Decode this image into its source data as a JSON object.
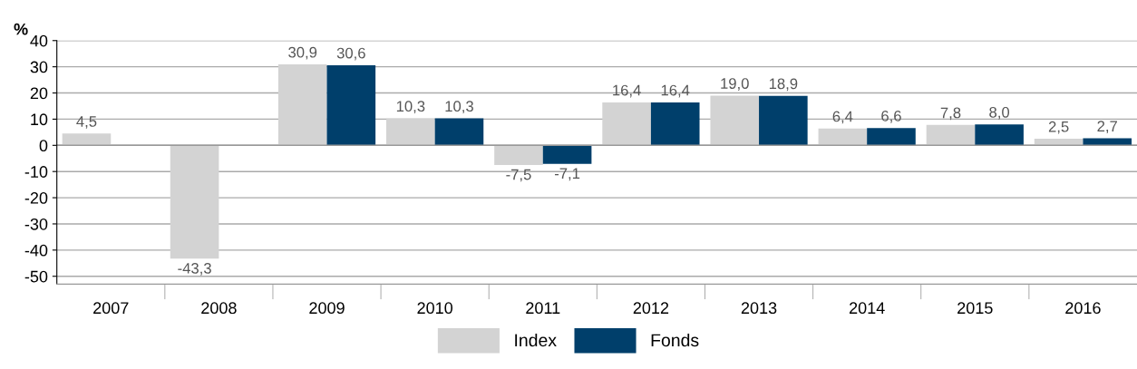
{
  "chart_data": {
    "type": "bar",
    "ylabel": "%",
    "categories": [
      "2007",
      "2008",
      "2009",
      "2010",
      "2011",
      "2012",
      "2013",
      "2014",
      "2015",
      "2016"
    ],
    "series": [
      {
        "name": "Index",
        "color": "#d3d3d3",
        "values": [
          4.5,
          -43.3,
          30.9,
          10.3,
          -7.5,
          16.4,
          19.0,
          6.4,
          7.8,
          2.5
        ],
        "value_labels": [
          "4,5",
          "-43,3",
          "30,9",
          "10,3",
          "-7,5",
          "16,4",
          "19,0",
          "6,4",
          "7,8",
          "2,5"
        ]
      },
      {
        "name": "Fonds",
        "color": "#003f6b",
        "values": [
          null,
          null,
          30.6,
          10.3,
          -7.1,
          16.4,
          18.9,
          6.6,
          8.0,
          2.7
        ],
        "value_labels": [
          null,
          null,
          "30,6",
          "10,3",
          "-7,1",
          "16,4",
          "18,9",
          "6,6",
          "8,0",
          "2,7"
        ]
      }
    ],
    "ylim": [
      -53,
      40
    ],
    "yticks": [
      -50,
      -40,
      -30,
      -20,
      -10,
      0,
      10,
      20,
      30,
      40
    ],
    "grid": "y",
    "legend": "bottom"
  }
}
